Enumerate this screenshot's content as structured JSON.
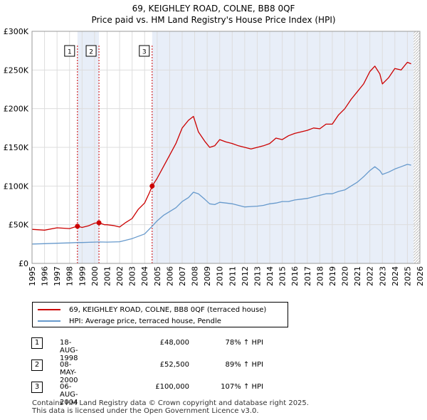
{
  "title_line1": "69, KEIGHLEY ROAD, COLNE, BB8 0QF",
  "title_line2": "Price paid vs. HM Land Registry's House Price Index (HPI)",
  "colors": {
    "property": "#cc0000",
    "hpi": "#6699cc",
    "shade": "#e8eef8",
    "grid": "#dddddd",
    "event_line": "#cc0000"
  },
  "chart_data": {
    "type": "line",
    "ylim": [
      0,
      300000
    ],
    "xlim": [
      1995,
      2026
    ],
    "y_ticks": [
      0,
      50000,
      100000,
      150000,
      200000,
      250000,
      300000
    ],
    "y_tick_labels": [
      "£0",
      "£50K",
      "£100K",
      "£150K",
      "£200K",
      "£250K",
      "£300K"
    ],
    "x_tick_labels": [
      "1995",
      "1996",
      "1997",
      "1998",
      "1999",
      "2000",
      "2001",
      "2002",
      "2003",
      "2004",
      "2005",
      "2006",
      "2007",
      "2008",
      "2009",
      "2010",
      "2011",
      "2012",
      "2013",
      "2014",
      "2015",
      "2016",
      "2017",
      "2018",
      "2019",
      "2020",
      "2021",
      "2022",
      "2023",
      "2024",
      "2025",
      "2026"
    ],
    "shaded_ranges": [
      [
        1998.63,
        2000.35
      ],
      [
        2004.6,
        2025.5
      ]
    ],
    "hatched_from": 2025.5,
    "series": [
      {
        "name": "69, KEIGHLEY ROAD, COLNE, BB8 0QF (terraced house)",
        "color": "#cc0000",
        "x": [
          1995,
          1996,
          1997,
          1998,
          1998.63,
          1999,
          1999.5,
          2000,
          2000.35,
          2000.8,
          2001,
          2001.5,
          2002,
          2002.5,
          2003,
          2003.5,
          2004,
          2004.4,
          2004.6,
          2005,
          2005.5,
          2006,
          2006.5,
          2007,
          2007.5,
          2007.9,
          2008.3,
          2008.8,
          2009.2,
          2009.6,
          2010,
          2010.5,
          2011,
          2011.5,
          2012,
          2012.5,
          2013,
          2013.5,
          2014,
          2014.5,
          2015,
          2015.5,
          2016,
          2016.5,
          2017,
          2017.5,
          2018,
          2018.5,
          2019,
          2019.5,
          2020,
          2020.5,
          2021,
          2021.5,
          2022,
          2022.4,
          2022.8,
          2023,
          2023.5,
          2024,
          2024.5,
          2025,
          2025.3
        ],
        "values": [
          44000,
          43000,
          46000,
          45000,
          48000,
          46500,
          48500,
          52000,
          52500,
          50000,
          50000,
          49000,
          47000,
          53000,
          58000,
          70000,
          78000,
          92000,
          100000,
          110000,
          125000,
          140000,
          155000,
          175000,
          185000,
          190000,
          170000,
          158000,
          150000,
          152000,
          160000,
          157000,
          155000,
          152000,
          150000,
          148000,
          150000,
          152000,
          155000,
          162000,
          160000,
          165000,
          168000,
          170000,
          172000,
          175000,
          174000,
          180000,
          180000,
          192000,
          200000,
          212000,
          222000,
          232000,
          248000,
          255000,
          245000,
          232000,
          240000,
          252000,
          250000,
          260000,
          258000
        ]
      },
      {
        "name": "HPI: Average price, terraced house, Pendle",
        "color": "#6699cc",
        "x": [
          1995,
          1996,
          1997,
          1998,
          1998.63,
          1999,
          2000,
          2000.35,
          2001,
          2002,
          2003,
          2004,
          2004.6,
          2005,
          2005.5,
          2006,
          2006.5,
          2007,
          2007.5,
          2007.9,
          2008.3,
          2008.8,
          2009.2,
          2009.6,
          2010,
          2010.5,
          2011,
          2011.5,
          2012,
          2012.5,
          2013,
          2013.5,
          2014,
          2014.5,
          2015,
          2015.5,
          2016,
          2016.5,
          2017,
          2017.5,
          2018,
          2018.5,
          2019,
          2019.5,
          2020,
          2020.5,
          2021,
          2021.5,
          2022,
          2022.4,
          2022.8,
          2023,
          2023.5,
          2024,
          2024.5,
          2025,
          2025.3
        ],
        "values": [
          25000,
          25500,
          26000,
          26500,
          27000,
          27000,
          27500,
          27700,
          27500,
          28000,
          32000,
          38000,
          48000,
          55000,
          62000,
          67000,
          72000,
          80000,
          85000,
          92000,
          90000,
          83000,
          77000,
          76000,
          79000,
          78000,
          77000,
          75000,
          73000,
          73500,
          74000,
          75000,
          77000,
          78000,
          80000,
          80000,
          82000,
          83000,
          84000,
          86000,
          88000,
          90000,
          90000,
          93000,
          95000,
          100000,
          105000,
          112000,
          120000,
          125000,
          120000,
          115000,
          118000,
          122000,
          125000,
          128000,
          127000
        ]
      }
    ],
    "markers": [
      {
        "label": "1",
        "x": 1998.63,
        "value": 48000
      },
      {
        "label": "2",
        "x": 2000.35,
        "value": 52500
      },
      {
        "label": "3",
        "x": 2004.6,
        "value": 100000
      }
    ]
  },
  "legend": {
    "property_label": "69, KEIGHLEY ROAD, COLNE, BB8 0QF (terraced house)",
    "hpi_label": "HPI: Average price, terraced house, Pendle"
  },
  "transactions": [
    {
      "num": "1",
      "date": "18-AUG-1998",
      "price": "£48,000",
      "hpi": "78% ↑ HPI"
    },
    {
      "num": "2",
      "date": "08-MAY-2000",
      "price": "£52,500",
      "hpi": "89% ↑ HPI"
    },
    {
      "num": "3",
      "date": "06-AUG-2004",
      "price": "£100,000",
      "hpi": "107% ↑ HPI"
    }
  ],
  "footer": {
    "line1": "Contains HM Land Registry data © Crown copyright and database right 2025.",
    "line2": "This data is licensed under the Open Government Licence v3.0."
  }
}
